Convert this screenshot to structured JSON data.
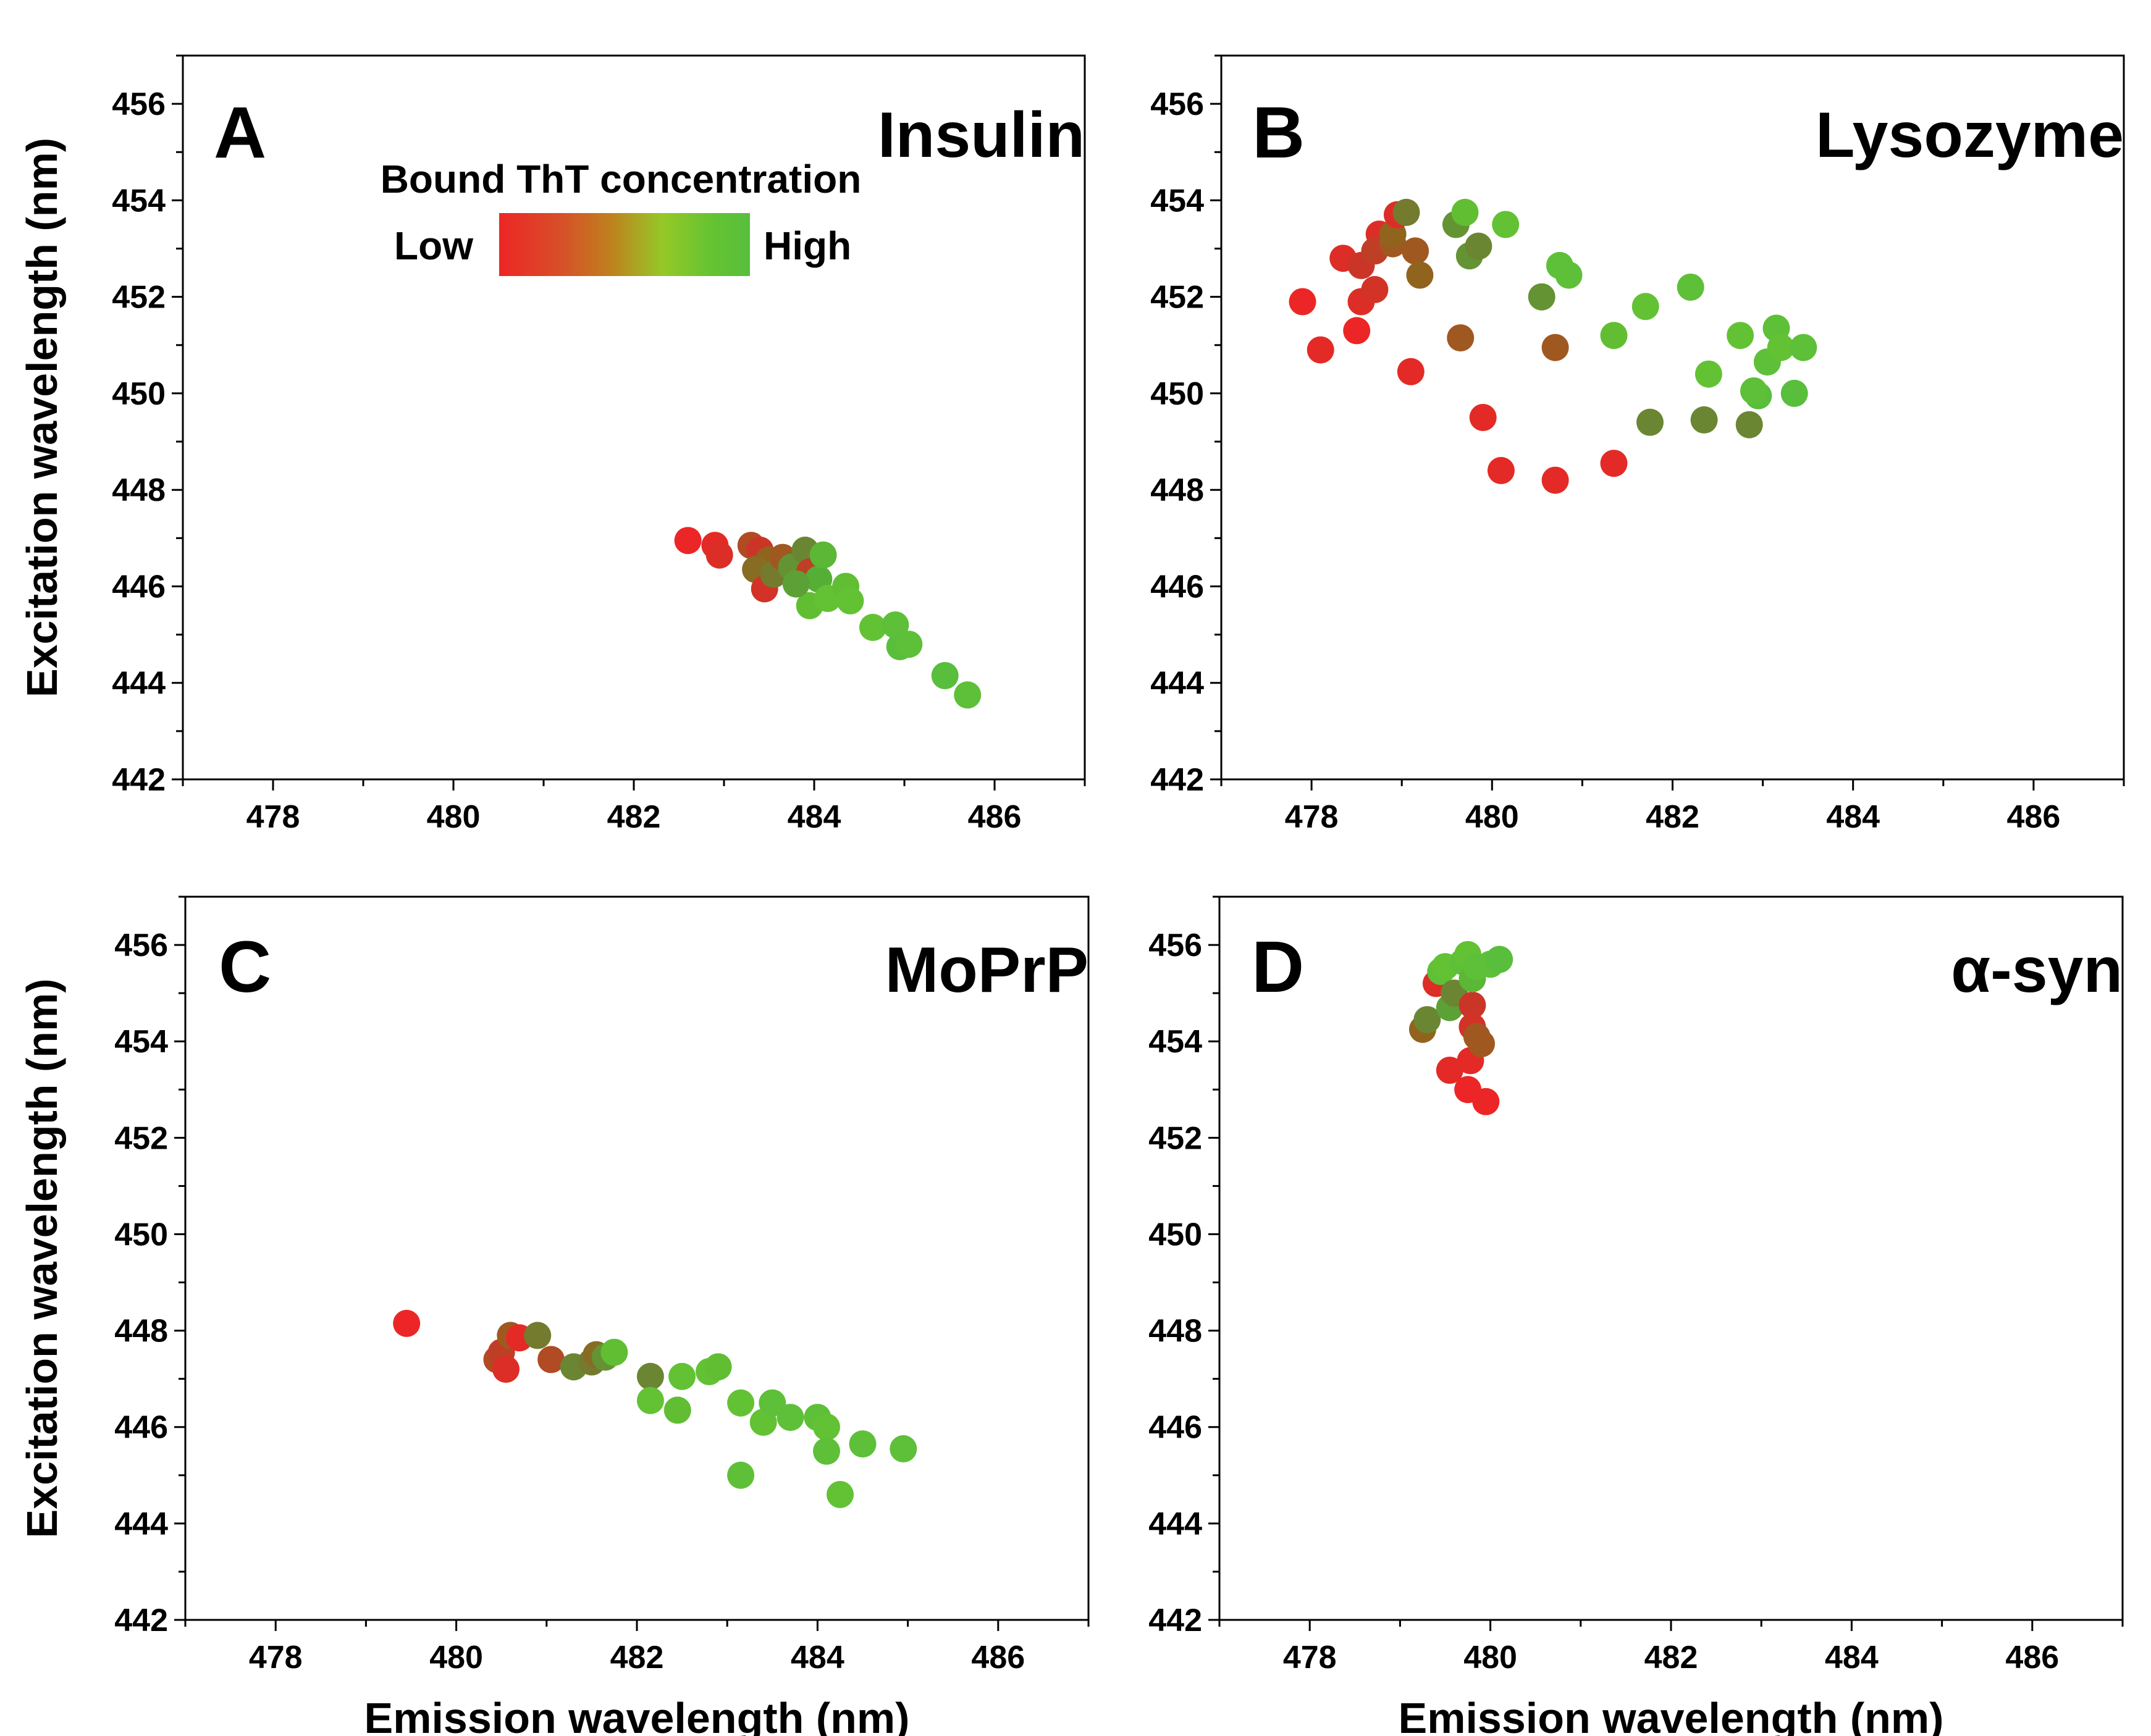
{
  "chart_data": [
    {
      "type": "scatter",
      "letter": "A",
      "title": "Insulin",
      "xlabel": "",
      "ylabel": "Excitation wavelength (nm)",
      "xlim": [
        477,
        487
      ],
      "ylim": [
        442,
        457
      ],
      "x_ticks": [
        "478",
        "480",
        "482",
        "484",
        "486"
      ],
      "y_ticks": [
        "442",
        "444",
        "446",
        "448",
        "450",
        "452",
        "454",
        "456"
      ],
      "legend": {
        "title": "Bound ThT concentration",
        "low": "Low",
        "high": "High"
      },
      "points": [
        [
          482.6,
          446.95,
          0.0
        ],
        [
          482.9,
          446.85,
          0.05
        ],
        [
          482.95,
          446.65,
          0.1
        ],
        [
          483.3,
          446.85,
          0.3
        ],
        [
          483.4,
          446.75,
          0.2
        ],
        [
          483.5,
          446.55,
          0.4
        ],
        [
          483.35,
          446.35,
          0.45
        ],
        [
          483.45,
          445.95,
          0.15
        ],
        [
          483.55,
          446.25,
          0.55
        ],
        [
          483.65,
          446.6,
          0.35
        ],
        [
          483.75,
          446.4,
          0.65
        ],
        [
          483.9,
          446.75,
          0.6
        ],
        [
          483.95,
          446.3,
          0.25
        ],
        [
          484.05,
          446.15,
          0.75
        ],
        [
          484.1,
          446.65,
          0.8
        ],
        [
          483.95,
          445.6,
          0.85
        ],
        [
          484.15,
          445.75,
          0.9
        ],
        [
          484.35,
          446.0,
          0.85
        ],
        [
          484.4,
          445.7,
          0.9
        ],
        [
          484.65,
          445.15,
          0.9
        ],
        [
          484.9,
          445.2,
          0.95
        ],
        [
          484.95,
          444.75,
          1.0
        ],
        [
          485.05,
          444.8,
          0.95
        ],
        [
          485.45,
          444.15,
          1.0
        ],
        [
          485.7,
          443.75,
          0.95
        ],
        [
          483.8,
          446.05,
          0.7
        ]
      ]
    },
    {
      "type": "scatter",
      "letter": "B",
      "title": "Lysozyme",
      "xlabel": "",
      "ylabel": "",
      "xlim": [
        477,
        487
      ],
      "ylim": [
        442,
        457
      ],
      "x_ticks": [
        "478",
        "480",
        "482",
        "484",
        "486"
      ],
      "y_ticks": [
        "442",
        "444",
        "446",
        "448",
        "450",
        "452",
        "454",
        "456"
      ],
      "points": [
        [
          477.9,
          451.9,
          0.0
        ],
        [
          478.1,
          450.9,
          0.05
        ],
        [
          478.35,
          452.8,
          0.1
        ],
        [
          478.5,
          451.3,
          0.0
        ],
        [
          478.55,
          451.9,
          0.1
        ],
        [
          478.55,
          452.65,
          0.2
        ],
        [
          478.7,
          452.15,
          0.15
        ],
        [
          478.75,
          453.3,
          0.1
        ],
        [
          478.7,
          452.95,
          0.25
        ],
        [
          478.9,
          453.1,
          0.35
        ],
        [
          478.9,
          453.3,
          0.4
        ],
        [
          478.95,
          453.7,
          0.1
        ],
        [
          479.05,
          453.75,
          0.55
        ],
        [
          479.15,
          452.95,
          0.35
        ],
        [
          479.2,
          452.45,
          0.4
        ],
        [
          479.1,
          450.45,
          0.05
        ],
        [
          479.6,
          453.5,
          0.65
        ],
        [
          479.7,
          453.75,
          0.85
        ],
        [
          479.75,
          452.85,
          0.65
        ],
        [
          479.85,
          453.05,
          0.6
        ],
        [
          479.65,
          451.15,
          0.35
        ],
        [
          479.9,
          449.5,
          0.05
        ],
        [
          480.1,
          448.4,
          0.05
        ],
        [
          480.15,
          453.5,
          0.9
        ],
        [
          480.55,
          452.0,
          0.65
        ],
        [
          480.7,
          448.2,
          0.05
        ],
        [
          480.7,
          450.95,
          0.35
        ],
        [
          480.75,
          452.65,
          0.95
        ],
        [
          480.85,
          452.45,
          0.95
        ],
        [
          481.35,
          448.55,
          0.05
        ],
        [
          481.35,
          451.2,
          0.85
        ],
        [
          481.7,
          451.8,
          0.9
        ],
        [
          481.75,
          449.4,
          0.6
        ],
        [
          482.2,
          452.2,
          0.95
        ],
        [
          482.4,
          450.4,
          0.9
        ],
        [
          482.35,
          449.45,
          0.6
        ],
        [
          482.75,
          451.2,
          0.9
        ],
        [
          482.85,
          449.35,
          0.6
        ],
        [
          482.95,
          449.95,
          1.0
        ],
        [
          482.9,
          450.05,
          0.95
        ],
        [
          483.05,
          450.65,
          0.95
        ],
        [
          483.15,
          451.35,
          0.95
        ],
        [
          483.2,
          450.95,
          0.9
        ],
        [
          483.35,
          450.0,
          1.0
        ],
        [
          483.45,
          450.95,
          0.95
        ]
      ]
    },
    {
      "type": "scatter",
      "letter": "C",
      "title": "MoPrP",
      "xlabel": "Emission wavelength (nm)",
      "ylabel": "Excitation wavelength (nm)",
      "xlim": [
        477,
        487
      ],
      "ylim": [
        442,
        457
      ],
      "x_ticks": [
        "478",
        "480",
        "482",
        "484",
        "486"
      ],
      "y_ticks": [
        "442",
        "444",
        "446",
        "448",
        "450",
        "452",
        "454",
        "456"
      ],
      "points": [
        [
          479.45,
          448.15,
          0.0
        ],
        [
          480.45,
          447.4,
          0.3
        ],
        [
          480.5,
          447.55,
          0.25
        ],
        [
          480.55,
          447.2,
          0.1
        ],
        [
          480.6,
          447.9,
          0.35
        ],
        [
          480.7,
          447.85,
          0.05
        ],
        [
          480.9,
          447.9,
          0.55
        ],
        [
          481.05,
          447.4,
          0.3
        ],
        [
          481.3,
          447.25,
          0.6
        ],
        [
          481.5,
          447.35,
          0.55
        ],
        [
          481.55,
          447.5,
          0.45
        ],
        [
          481.65,
          447.45,
          0.65
        ],
        [
          481.75,
          447.55,
          0.85
        ],
        [
          482.15,
          447.05,
          0.6
        ],
        [
          482.15,
          446.55,
          0.9
        ],
        [
          482.45,
          446.35,
          0.85
        ],
        [
          482.5,
          447.05,
          0.9
        ],
        [
          482.8,
          447.15,
          0.9
        ],
        [
          482.9,
          447.25,
          0.85
        ],
        [
          483.15,
          446.5,
          0.9
        ],
        [
          483.15,
          445.0,
          0.95
        ],
        [
          483.4,
          446.1,
          0.9
        ],
        [
          483.5,
          446.5,
          0.95
        ],
        [
          483.7,
          446.2,
          0.95
        ],
        [
          484.0,
          446.2,
          0.95
        ],
        [
          484.1,
          446.0,
          0.9
        ],
        [
          484.1,
          445.5,
          0.95
        ],
        [
          484.25,
          444.6,
          0.9
        ],
        [
          484.5,
          445.65,
          0.95
        ],
        [
          484.95,
          445.55,
          0.95
        ]
      ]
    },
    {
      "type": "scatter",
      "letter": "D",
      "title": "α-syn",
      "xlabel": "Emission wavelength (nm)",
      "ylabel": "",
      "xlim": [
        477,
        487
      ],
      "ylim": [
        442,
        457
      ],
      "x_ticks": [
        "478",
        "480",
        "482",
        "484",
        "486"
      ],
      "y_ticks": [
        "442",
        "444",
        "446",
        "448",
        "450",
        "452",
        "454",
        "456"
      ],
      "points": [
        [
          479.25,
          454.25,
          0.4
        ],
        [
          479.3,
          454.45,
          0.6
        ],
        [
          479.4,
          455.2,
          0.1
        ],
        [
          479.45,
          455.45,
          0.95
        ],
        [
          479.5,
          455.55,
          0.9
        ],
        [
          479.55,
          453.4,
          0.05
        ],
        [
          479.55,
          454.7,
          0.7
        ],
        [
          479.6,
          455.0,
          0.6
        ],
        [
          479.7,
          455.65,
          0.95
        ],
        [
          479.75,
          455.8,
          0.9
        ],
        [
          479.75,
          453.0,
          0.0
        ],
        [
          479.78,
          453.6,
          0.05
        ],
        [
          479.8,
          454.75,
          0.2
        ],
        [
          479.8,
          454.3,
          0.15
        ],
        [
          479.85,
          454.1,
          0.35
        ],
        [
          479.8,
          455.3,
          0.8
        ],
        [
          479.85,
          455.55,
          0.95
        ],
        [
          479.9,
          453.95,
          0.35
        ],
        [
          479.95,
          452.75,
          0.0
        ],
        [
          480.0,
          455.6,
          0.95
        ],
        [
          480.1,
          455.7,
          1.0
        ]
      ]
    }
  ]
}
